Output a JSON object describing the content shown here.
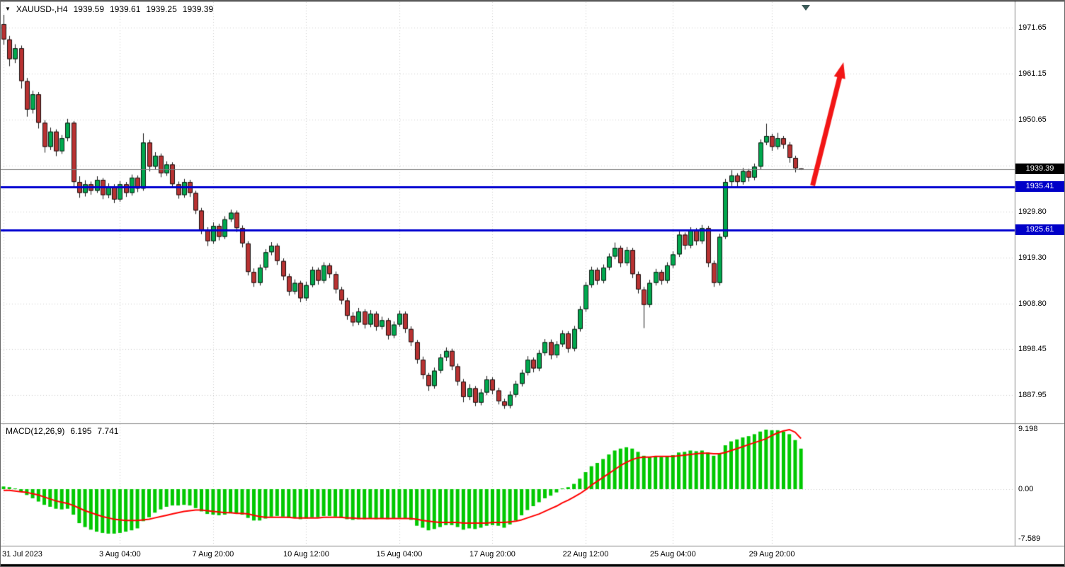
{
  "header": {
    "symbol_dropdown_icon": "symbol-dropdown",
    "symbol_period": "XAUUSD-,H4",
    "open": "1939.59",
    "high": "1939.61",
    "low": "1939.25",
    "close": "1939.39"
  },
  "macd_panel": {
    "title": "MACD(12,26,9)",
    "main": "6.195",
    "signal": "7.741"
  },
  "colors": {
    "bg": "#FFFFFF",
    "grid": "#CBCBCB",
    "up": "#00A84E",
    "down": "#B83232",
    "candle_border": "#141414",
    "wick": "#141414",
    "hline": "#0000D0",
    "current_line": "#7A7A7A",
    "badge_current": "#000000",
    "badge_hline": "#0000C8",
    "arrow": "#F21616",
    "macd_hist": "#00C800",
    "macd_signal": "#FF0000",
    "separator": "#8C8C8C",
    "frame": "#000000"
  },
  "chart_data": {
    "type": "candlestick",
    "symbol": "XAUUSD-",
    "timeframe": "H4",
    "ohlc_current": {
      "open": 1939.59,
      "high": 1939.61,
      "low": 1939.25,
      "close": 1939.39
    },
    "price_ylim": [
      1881.5,
      1977.5
    ],
    "grid_levels": [
      1971.65,
      1961.15,
      1950.65,
      1940.2,
      1929.8,
      1919.3,
      1908.8,
      1898.45,
      1887.95
    ],
    "axis_label_levels": [
      1971.65,
      1961.15,
      1950.65,
      1929.8,
      1919.3,
      1908.8,
      1898.45,
      1887.95
    ],
    "current_price": 1939.39,
    "hlines": [
      {
        "price": 1935.41
      },
      {
        "price": 1925.61
      }
    ],
    "time_ticks": [
      {
        "index": 0,
        "label": "31 Jul 2023"
      },
      {
        "index": 20,
        "label": "3 Aug 04:00"
      },
      {
        "index": 36,
        "label": "7 Aug 20:00"
      },
      {
        "index": 52,
        "label": "10 Aug 12:00"
      },
      {
        "index": 68,
        "label": "15 Aug 04:00"
      },
      {
        "index": 84,
        "label": "17 Aug 20:00"
      },
      {
        "index": 100,
        "label": "22 Aug 12:00"
      },
      {
        "index": 115,
        "label": "25 Aug 04:00"
      },
      {
        "index": 132,
        "label": "29 Aug 20:00"
      }
    ],
    "candles": [
      [
        1972.5,
        1974.6,
        1967.8,
        1969.0
      ],
      [
        1969.0,
        1969.8,
        1962.9,
        1964.5
      ],
      [
        1964.5,
        1967.9,
        1963.6,
        1967.0
      ],
      [
        1967.0,
        1967.6,
        1957.8,
        1959.5
      ],
      [
        1959.5,
        1960.2,
        1951.4,
        1953.0
      ],
      [
        1953.0,
        1957.3,
        1952.1,
        1956.5
      ],
      [
        1956.5,
        1957.0,
        1948.7,
        1950.0
      ],
      [
        1950.0,
        1950.6,
        1943.2,
        1944.5
      ],
      [
        1944.5,
        1948.9,
        1943.8,
        1948.0
      ],
      [
        1948.0,
        1948.5,
        1942.4,
        1943.5
      ],
      [
        1943.5,
        1947.2,
        1942.9,
        1946.5
      ],
      [
        1946.5,
        1950.9,
        1945.8,
        1950.0
      ],
      [
        1950.0,
        1950.4,
        1935.2,
        1936.5
      ],
      [
        1936.5,
        1937.8,
        1932.9,
        1934.0
      ],
      [
        1934.0,
        1936.9,
        1933.2,
        1936.0
      ],
      [
        1936.0,
        1936.6,
        1933.6,
        1934.5
      ],
      [
        1934.5,
        1937.8,
        1934.0,
        1937.0
      ],
      [
        1937.0,
        1937.4,
        1932.6,
        1933.5
      ],
      [
        1933.5,
        1936.2,
        1932.8,
        1935.5
      ],
      [
        1935.5,
        1936.0,
        1931.7,
        1932.5
      ],
      [
        1932.5,
        1936.7,
        1932.0,
        1936.0
      ],
      [
        1936.0,
        1936.5,
        1933.1,
        1934.0
      ],
      [
        1934.0,
        1938.2,
        1933.4,
        1937.5
      ],
      [
        1937.5,
        1938.0,
        1934.2,
        1935.0
      ],
      [
        1935.0,
        1947.6,
        1934.5,
        1945.5
      ],
      [
        1945.5,
        1946.1,
        1938.9,
        1940.0
      ],
      [
        1940.0,
        1943.3,
        1939.4,
        1942.5
      ],
      [
        1942.5,
        1943.0,
        1937.6,
        1938.5
      ],
      [
        1938.5,
        1941.2,
        1937.9,
        1940.5
      ],
      [
        1940.5,
        1941.0,
        1935.1,
        1936.0
      ],
      [
        1936.0,
        1936.6,
        1932.7,
        1933.5
      ],
      [
        1933.5,
        1937.2,
        1932.9,
        1936.5
      ],
      [
        1936.5,
        1937.0,
        1933.1,
        1934.0
      ],
      [
        1934.0,
        1934.5,
        1929.2,
        1930.0
      ],
      [
        1930.0,
        1930.6,
        1924.6,
        1925.5
      ],
      [
        1925.5,
        1926.2,
        1921.9,
        1923.0
      ],
      [
        1923.0,
        1927.3,
        1922.4,
        1926.5
      ],
      [
        1926.5,
        1927.0,
        1923.2,
        1924.0
      ],
      [
        1924.0,
        1928.7,
        1923.5,
        1928.0
      ],
      [
        1928.0,
        1930.2,
        1927.4,
        1929.5
      ],
      [
        1929.5,
        1930.0,
        1925.1,
        1926.0
      ],
      [
        1926.0,
        1926.6,
        1921.6,
        1922.5
      ],
      [
        1922.5,
        1923.0,
        1915.2,
        1916.0
      ],
      [
        1916.0,
        1916.8,
        1912.6,
        1913.5
      ],
      [
        1913.5,
        1917.7,
        1912.9,
        1917.0
      ],
      [
        1917.0,
        1921.2,
        1916.4,
        1920.5
      ],
      [
        1920.5,
        1922.8,
        1919.8,
        1922.0
      ],
      [
        1922.0,
        1922.5,
        1917.6,
        1918.5
      ],
      [
        1918.5,
        1919.1,
        1914.1,
        1915.0
      ],
      [
        1915.0,
        1915.6,
        1910.6,
        1911.5
      ],
      [
        1911.5,
        1914.3,
        1910.9,
        1913.5
      ],
      [
        1913.5,
        1914.0,
        1909.1,
        1910.0
      ],
      [
        1910.0,
        1913.8,
        1909.4,
        1913.0
      ],
      [
        1913.0,
        1917.2,
        1912.5,
        1916.5
      ],
      [
        1916.5,
        1917.0,
        1913.1,
        1914.0
      ],
      [
        1914.0,
        1918.2,
        1913.4,
        1917.5
      ],
      [
        1917.5,
        1918.0,
        1914.6,
        1915.5
      ],
      [
        1915.5,
        1916.1,
        1911.1,
        1912.0
      ],
      [
        1912.0,
        1912.6,
        1908.6,
        1909.5
      ],
      [
        1909.5,
        1910.1,
        1905.1,
        1906.0
      ],
      [
        1906.0,
        1906.8,
        1903.6,
        1904.5
      ],
      [
        1904.5,
        1907.8,
        1903.9,
        1907.0
      ],
      [
        1907.0,
        1907.5,
        1903.1,
        1904.0
      ],
      [
        1904.0,
        1907.3,
        1903.4,
        1906.5
      ],
      [
        1906.5,
        1907.0,
        1902.6,
        1903.5
      ],
      [
        1903.5,
        1905.8,
        1902.9,
        1905.0
      ],
      [
        1905.0,
        1905.5,
        1900.6,
        1901.5
      ],
      [
        1901.5,
        1904.7,
        1900.9,
        1904.0
      ],
      [
        1904.0,
        1907.2,
        1903.5,
        1906.5
      ],
      [
        1906.5,
        1907.0,
        1902.1,
        1903.0
      ],
      [
        1903.0,
        1903.6,
        1899.1,
        1900.0
      ],
      [
        1900.0,
        1900.5,
        1895.1,
        1896.0
      ],
      [
        1896.0,
        1896.7,
        1891.6,
        1892.5
      ],
      [
        1892.5,
        1893.0,
        1888.9,
        1890.0
      ],
      [
        1890.0,
        1894.2,
        1889.4,
        1893.5
      ],
      [
        1893.5,
        1897.3,
        1892.9,
        1896.5
      ],
      [
        1896.5,
        1898.8,
        1895.7,
        1898.0
      ],
      [
        1898.0,
        1898.5,
        1893.6,
        1894.5
      ],
      [
        1894.5,
        1895.1,
        1890.1,
        1891.0
      ],
      [
        1891.0,
        1891.6,
        1886.3,
        1887.5
      ],
      [
        1887.5,
        1890.4,
        1886.8,
        1889.5
      ],
      [
        1889.5,
        1890.0,
        1885.4,
        1886.2
      ],
      [
        1886.2,
        1889.3,
        1885.6,
        1888.5
      ],
      [
        1888.5,
        1892.3,
        1887.9,
        1891.5
      ],
      [
        1891.5,
        1892.0,
        1888.1,
        1889.0
      ],
      [
        1889.0,
        1889.6,
        1885.8,
        1886.5
      ],
      [
        1886.5,
        1887.1,
        1884.8,
        1885.5
      ],
      [
        1885.5,
        1888.8,
        1884.9,
        1888.0
      ],
      [
        1888.0,
        1891.2,
        1887.4,
        1890.5
      ],
      [
        1890.5,
        1893.7,
        1889.9,
        1893.0
      ],
      [
        1893.0,
        1896.8,
        1892.4,
        1896.0
      ],
      [
        1896.0,
        1896.5,
        1893.1,
        1894.0
      ],
      [
        1894.0,
        1898.2,
        1893.4,
        1897.5
      ],
      [
        1897.5,
        1900.7,
        1896.9,
        1900.0
      ],
      [
        1900.0,
        1900.6,
        1896.1,
        1897.0
      ],
      [
        1897.0,
        1900.2,
        1896.4,
        1899.5
      ],
      [
        1899.5,
        1902.7,
        1898.9,
        1902.0
      ],
      [
        1902.0,
        1902.5,
        1897.6,
        1898.5
      ],
      [
        1898.5,
        1903.7,
        1897.9,
        1903.0
      ],
      [
        1903.0,
        1908.2,
        1902.4,
        1907.5
      ],
      [
        1907.5,
        1913.7,
        1906.9,
        1913.0
      ],
      [
        1913.0,
        1917.2,
        1912.4,
        1916.5
      ],
      [
        1916.5,
        1917.0,
        1913.1,
        1914.0
      ],
      [
        1914.0,
        1917.7,
        1913.4,
        1917.0
      ],
      [
        1917.0,
        1920.2,
        1916.4,
        1919.5
      ],
      [
        1919.5,
        1922.7,
        1918.9,
        1921.5
      ],
      [
        1921.5,
        1922.0,
        1917.1,
        1918.0
      ],
      [
        1918.0,
        1921.7,
        1917.4,
        1921.0
      ],
      [
        1921.0,
        1921.5,
        1914.6,
        1915.5
      ],
      [
        1915.5,
        1916.1,
        1911.1,
        1912.0
      ],
      [
        1912.0,
        1912.6,
        1903.2,
        1908.5
      ],
      [
        1908.5,
        1914.2,
        1907.9,
        1913.5
      ],
      [
        1913.5,
        1916.7,
        1912.9,
        1916.0
      ],
      [
        1916.0,
        1916.5,
        1913.1,
        1914.0
      ],
      [
        1914.0,
        1918.2,
        1913.4,
        1917.5
      ],
      [
        1917.5,
        1920.7,
        1916.9,
        1920.0
      ],
      [
        1920.0,
        1925.2,
        1919.4,
        1924.5
      ],
      [
        1924.5,
        1925.0,
        1921.1,
        1922.0
      ],
      [
        1922.0,
        1926.2,
        1921.4,
        1925.5
      ],
      [
        1925.5,
        1926.0,
        1922.1,
        1923.0
      ],
      [
        1923.0,
        1926.7,
        1922.4,
        1926.0
      ],
      [
        1926.0,
        1926.5,
        1917.1,
        1918.0
      ],
      [
        1918.0,
        1918.6,
        1912.6,
        1913.5
      ],
      [
        1913.5,
        1924.7,
        1912.9,
        1924.0
      ],
      [
        1924.0,
        1937.2,
        1923.5,
        1936.5
      ],
      [
        1936.5,
        1939.2,
        1935.6,
        1938.0
      ],
      [
        1938.0,
        1938.5,
        1935.4,
        1936.5
      ],
      [
        1936.5,
        1939.7,
        1935.9,
        1939.0
      ],
      [
        1939.0,
        1939.5,
        1936.6,
        1937.5
      ],
      [
        1937.5,
        1940.7,
        1936.9,
        1940.0
      ],
      [
        1940.0,
        1946.2,
        1939.4,
        1945.5
      ],
      [
        1945.5,
        1949.8,
        1944.9,
        1947.0
      ],
      [
        1947.0,
        1947.5,
        1943.6,
        1944.5
      ],
      [
        1944.5,
        1947.7,
        1943.9,
        1946.5
      ],
      [
        1946.5,
        1947.0,
        1944.1,
        1945.0
      ],
      [
        1945.0,
        1945.6,
        1940.9,
        1942.0
      ],
      [
        1942.0,
        1942.5,
        1938.7,
        1939.6
      ],
      [
        1939.59,
        1939.61,
        1939.25,
        1939.39
      ]
    ],
    "annotations": [
      {
        "type": "arrow",
        "from_index": 139,
        "from_price": 1935.7,
        "to_index": 144.3,
        "to_price": 1963.8
      }
    ],
    "macd": {
      "title": "MACD(12,26,9)",
      "fast": 12,
      "slow": 26,
      "signal_period": 9,
      "current_main": 6.195,
      "current_signal": 7.741,
      "ylim": [
        -8.66,
        9.74
      ],
      "scale_labels": [
        {
          "label": "9.198",
          "value": 9.198
        },
        {
          "label": "0.00",
          "value": 0
        },
        {
          "label": "-7.589",
          "value": -7.589
        }
      ],
      "histogram": [
        0.4,
        0.3,
        0.1,
        -0.4,
        -0.9,
        -1.4,
        -1.9,
        -2.4,
        -2.7,
        -3.0,
        -3.1,
        -3.0,
        -3.9,
        -5.2,
        -5.8,
        -6.2,
        -6.5,
        -6.7,
        -6.8,
        -6.8,
        -6.7,
        -6.5,
        -6.3,
        -6.0,
        -4.9,
        -4.3,
        -3.6,
        -3.1,
        -2.7,
        -2.5,
        -2.5,
        -2.4,
        -2.5,
        -2.9,
        -3.4,
        -3.8,
        -3.9,
        -4.0,
        -3.9,
        -3.7,
        -3.7,
        -3.9,
        -4.4,
        -4.8,
        -4.8,
        -4.5,
        -4.2,
        -4.1,
        -4.2,
        -4.4,
        -4.4,
        -4.6,
        -4.5,
        -4.3,
        -4.3,
        -4.1,
        -4.1,
        -4.2,
        -4.4,
        -4.6,
        -4.7,
        -4.6,
        -4.6,
        -4.5,
        -4.6,
        -4.5,
        -4.6,
        -4.5,
        -4.4,
        -4.5,
        -4.7,
        -5.6,
        -5.9,
        -6.3,
        -6.1,
        -5.8,
        -5.5,
        -5.5,
        -5.8,
        -6.2,
        -6.0,
        -6.1,
        -5.9,
        -5.6,
        -5.5,
        -5.6,
        -5.9,
        -5.4,
        -4.8,
        -4.0,
        -3.2,
        -2.6,
        -2.0,
        -1.4,
        -1.0,
        -0.5,
        0.1,
        0.3,
        0.8,
        1.6,
        2.6,
        3.5,
        4.0,
        4.6,
        5.3,
        5.9,
        6.2,
        6.4,
        6.2,
        5.7,
        5.1,
        4.9,
        5.0,
        4.9,
        5.0,
        5.2,
        5.6,
        5.7,
        5.9,
        5.8,
        5.9,
        5.6,
        5.1,
        5.5,
        6.7,
        7.3,
        7.6,
        7.9,
        8.1,
        8.4,
        8.8,
        9.1,
        9.0,
        9.0,
        8.8,
        8.4,
        7.5,
        6.195
      ],
      "signal": [
        -0.2,
        -0.2,
        -0.3,
        -0.4,
        -0.5,
        -0.7,
        -0.9,
        -1.2,
        -1.5,
        -1.8,
        -2.0,
        -2.2,
        -2.5,
        -2.9,
        -3.3,
        -3.6,
        -3.9,
        -4.2,
        -4.4,
        -4.6,
        -4.7,
        -4.8,
        -4.8,
        -4.8,
        -4.7,
        -4.6,
        -4.4,
        -4.2,
        -4.0,
        -3.8,
        -3.6,
        -3.4,
        -3.3,
        -3.2,
        -3.2,
        -3.3,
        -3.4,
        -3.5,
        -3.6,
        -3.6,
        -3.7,
        -3.7,
        -3.8,
        -4.0,
        -4.2,
        -4.3,
        -4.3,
        -4.3,
        -4.3,
        -4.3,
        -4.4,
        -4.4,
        -4.4,
        -4.4,
        -4.4,
        -4.3,
        -4.3,
        -4.3,
        -4.3,
        -4.4,
        -4.4,
        -4.5,
        -4.5,
        -4.5,
        -4.5,
        -4.5,
        -4.5,
        -4.5,
        -4.5,
        -4.5,
        -4.5,
        -4.6,
        -4.8,
        -4.9,
        -5.0,
        -5.1,
        -5.1,
        -5.1,
        -5.1,
        -5.2,
        -5.2,
        -5.2,
        -5.2,
        -5.2,
        -5.1,
        -5.1,
        -5.1,
        -5.0,
        -4.9,
        -4.7,
        -4.4,
        -4.1,
        -3.8,
        -3.4,
        -3.0,
        -2.6,
        -2.1,
        -1.7,
        -1.2,
        -0.7,
        -0.1,
        0.6,
        1.2,
        1.8,
        2.4,
        3.0,
        3.6,
        4.1,
        4.5,
        4.8,
        4.9,
        4.9,
        5.0,
        5.0,
        5.0,
        5.0,
        5.1,
        5.2,
        5.3,
        5.4,
        5.5,
        5.5,
        5.4,
        5.4,
        5.6,
        5.9,
        6.2,
        6.5,
        6.8,
        7.1,
        7.4,
        7.7,
        8.2,
        8.6,
        8.9,
        9.1,
        8.7,
        7.741
      ]
    }
  }
}
